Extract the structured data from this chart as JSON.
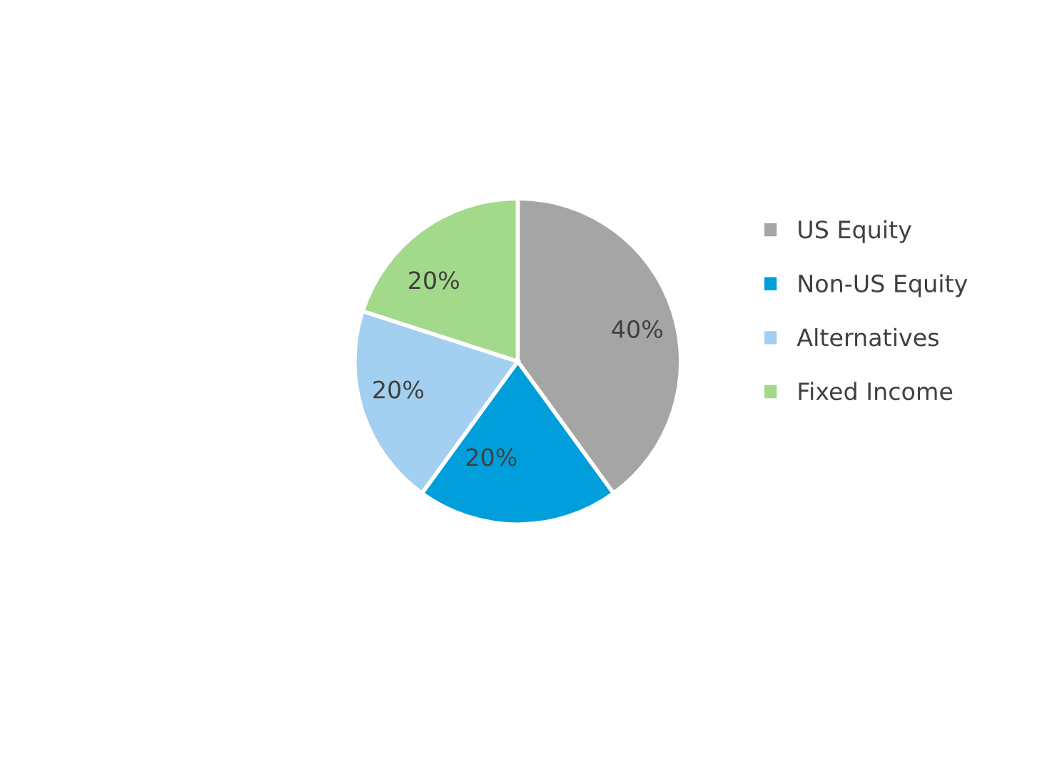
{
  "chart_data": {
    "type": "pie",
    "categories": [
      "US Equity",
      "Non-US Equity",
      "Alternatives",
      "Fixed Income"
    ],
    "values": [
      40,
      20,
      20,
      20
    ],
    "colors": [
      "#a5a5a5",
      "#009fdb",
      "#a3cff0",
      "#a2d98b"
    ],
    "value_labels": [
      "40%",
      "20%",
      "20%",
      "20%"
    ],
    "legend": "right"
  }
}
